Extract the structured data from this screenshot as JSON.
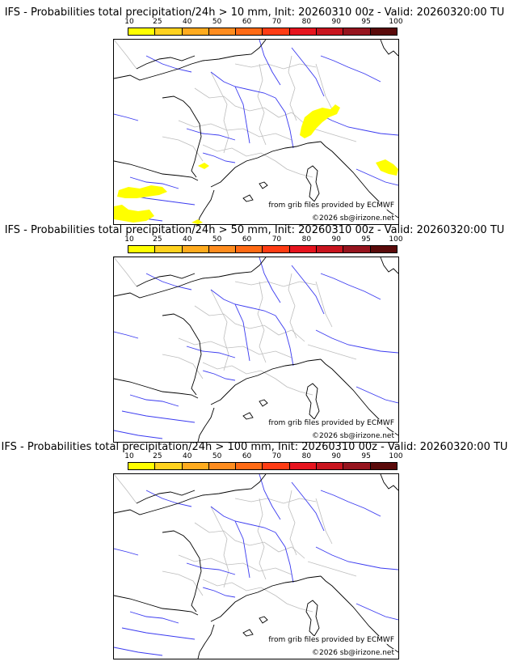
{
  "colors": {
    "coast": "#000000",
    "rivers": "#3a3af0",
    "borders": "#bdbdbd",
    "prob_fill": "#ffff00"
  },
  "colorbar": {
    "ticks": [
      "10",
      "25",
      "40",
      "50",
      "60",
      "70",
      "80",
      "90",
      "95",
      "100"
    ],
    "colors": [
      "#ffff00",
      "#ffd21e",
      "#ffab1e",
      "#ff8c1e",
      "#ff6a14",
      "#ff3c14",
      "#e6141e",
      "#c8141e",
      "#96141e",
      "#5a0a0a"
    ]
  },
  "panels": [
    {
      "title": "IFS - Probabilities total precipitation/24h > 10 mm, Init: 20260310 00z - Valid: 20260320:00 TU",
      "credit_source": "from grib files provided by ECMWF",
      "credit_copyright": "©2026 sb@irizone.net",
      "has_precip": true
    },
    {
      "title": "IFS - Probabilities total precipitation/24h > 50 mm, Init: 20260310 00z - Valid: 20260320:00 TU",
      "credit_source": "from grib files provided by ECMWF",
      "credit_copyright": "©2026 sb@irizone.net",
      "has_precip": false
    },
    {
      "title": "IFS - Probabilities total precipitation/24h > 100 mm, Init: 20260310 00z - Valid: 20260320:00 TU",
      "credit_source": "from grib files provided by ECMWF",
      "credit_copyright": "©2026 sb@irizone.net",
      "has_precip": false
    }
  ]
}
